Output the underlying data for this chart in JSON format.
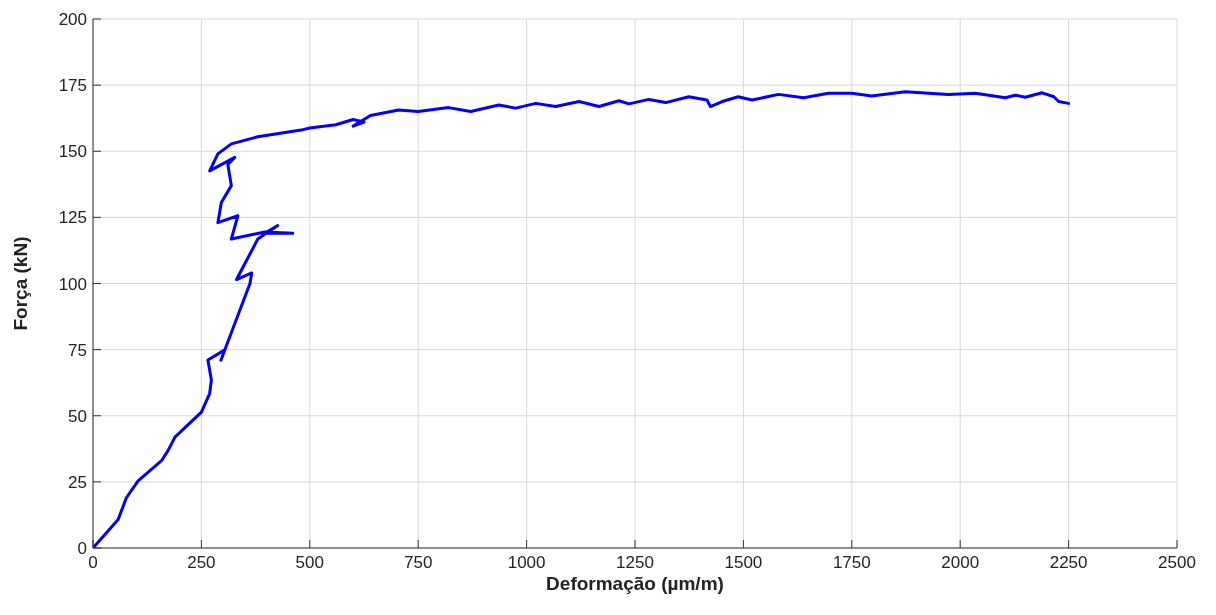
{
  "chart_data": {
    "type": "line",
    "xlabel": "Deformação (µm/m)",
    "ylabel": "Força (kN)",
    "xlim": [
      0,
      2500
    ],
    "xticks": [
      0,
      250,
      500,
      750,
      1000,
      1250,
      1500,
      1750,
      2000,
      2250,
      2500
    ],
    "ylim": [
      0,
      200
    ],
    "yticks": [
      0,
      25,
      50,
      75,
      100,
      125,
      150,
      175,
      200
    ],
    "grid": true,
    "legend": false,
    "marker": "none",
    "line_style": "solid",
    "series": [
      {
        "color": "#0000ff",
        "x": [
          0,
          58,
          77,
          104,
          158,
          173,
          189,
          250,
          269,
          273,
          265,
          304,
          295,
          362,
          366,
          331,
          380,
          426,
          396,
          461,
          396,
          319,
          334,
          288,
          296,
          319,
          311,
          327,
          269,
          288,
          319,
          380,
          480,
          500,
          560,
          600,
          625,
          600,
          640,
          705,
          750,
          820,
          871,
          936,
          975,
          1021,
          1067,
          1121,
          1167,
          1213,
          1236,
          1282,
          1321,
          1374,
          1416,
          1424,
          1451,
          1488,
          1520,
          1581,
          1639,
          1696,
          1750,
          1796,
          1873,
          1973,
          2035,
          2104,
          2127,
          2150,
          2189,
          2216,
          2227,
          2250
        ],
        "values": [
          0,
          10.8,
          19,
          25.4,
          33,
          36.8,
          41.9,
          51.4,
          58.4,
          63.5,
          71.1,
          74.9,
          71,
          100,
          104,
          101.5,
          116.8,
          121.9,
          119,
          119,
          119.5,
          116.8,
          125.6,
          123,
          130.6,
          137,
          145,
          147.7,
          142.6,
          149,
          152.8,
          155.5,
          158,
          158.8,
          160,
          162,
          161,
          159.5,
          163.5,
          165.6,
          165,
          166.5,
          165,
          167.5,
          166.3,
          168.1,
          166.9,
          168.8,
          166.9,
          169.1,
          167.9,
          169.6,
          168.4,
          170.6,
          169.4,
          166.9,
          168.8,
          170.6,
          169.4,
          171.5,
          170.2,
          171.9,
          171.9,
          170.9,
          172.5,
          171.5,
          171.9,
          170.2,
          171.2,
          170.4,
          172.1,
          170.6,
          168.8,
          168.1
        ]
      }
    ]
  }
}
